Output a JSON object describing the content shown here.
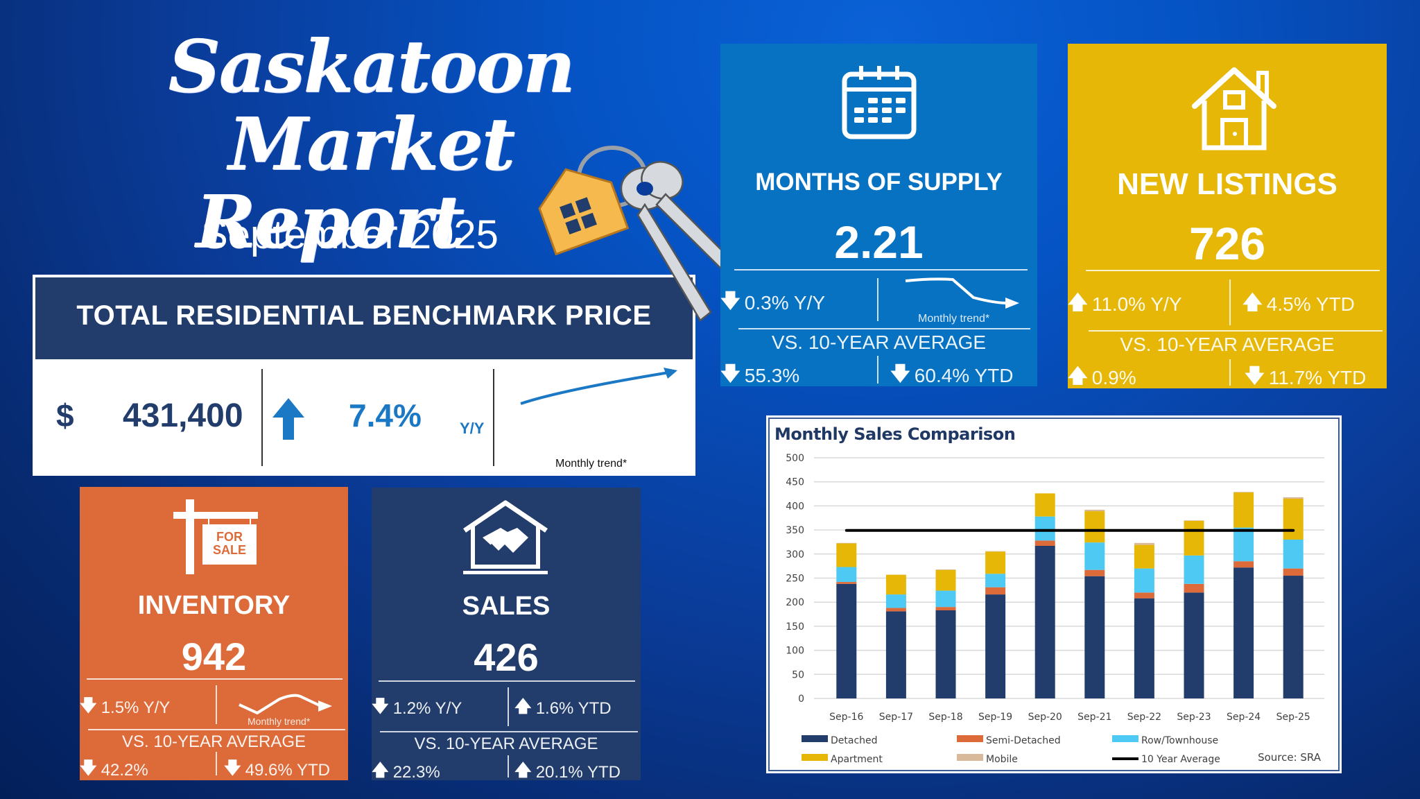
{
  "header": {
    "title_line1": "Saskatoon Market",
    "title_line2": "Report",
    "subtitle": "September 2025"
  },
  "colors": {
    "navy": "#223d6b",
    "blue": "#0872c2",
    "gold": "#e6b707",
    "orange": "#dd6b3a",
    "cyan": "#4ec9f3",
    "accent_blue": "#1b78c4"
  },
  "benchmark": {
    "title": "TOTAL RESIDENTIAL BENCHMARK PRICE",
    "currency": "$",
    "price": "431,400",
    "direction": "up",
    "change": "7.4%",
    "period": "Y/Y",
    "trend_label": "Monthly trend*"
  },
  "cards": {
    "supply": {
      "icon": "calendar-icon",
      "label": "MONTHS OF SUPPLY",
      "value": "2.21",
      "yy": {
        "dir": "down",
        "text": "0.3% Y/Y"
      },
      "trend_label": "Monthly trend*",
      "vs_label": "VS. 10-YEAR AVERAGE",
      "avg": {
        "dir": "down",
        "text": "55.3%"
      },
      "avg_ytd": {
        "dir": "down",
        "text": "60.4% YTD"
      }
    },
    "new_listings": {
      "icon": "house-icon",
      "label": "NEW LISTINGS",
      "value": "726",
      "yy": {
        "dir": "up",
        "text": "11.0% Y/Y"
      },
      "ytd": {
        "dir": "up",
        "text": "4.5% YTD"
      },
      "vs_label": "VS. 10-YEAR AVERAGE",
      "avg": {
        "dir": "up",
        "text": "0.9%"
      },
      "avg_ytd": {
        "dir": "down",
        "text": "11.7% YTD"
      }
    },
    "inventory": {
      "icon": "for-sale-sign-icon",
      "sign_line1": "FOR",
      "sign_line2": "SALE",
      "label": "INVENTORY",
      "value": "942",
      "yy": {
        "dir": "down",
        "text": "1.5% Y/Y"
      },
      "trend_label": "Monthly trend*",
      "vs_label": "VS. 10-YEAR AVERAGE",
      "avg": {
        "dir": "down",
        "text": "42.2%"
      },
      "avg_ytd": {
        "dir": "down",
        "text": "49.6% YTD"
      }
    },
    "sales": {
      "icon": "handshake-house-icon",
      "label": "SALES",
      "value": "426",
      "yy": {
        "dir": "down",
        "text": "1.2% Y/Y"
      },
      "ytd": {
        "dir": "up",
        "text": "1.6% YTD"
      },
      "vs_label": "VS. 10-YEAR AVERAGE",
      "avg": {
        "dir": "up",
        "text": "22.3%"
      },
      "avg_ytd": {
        "dir": "up",
        "text": "20.1% YTD"
      }
    }
  },
  "chart_data": {
    "type": "bar",
    "stacked": true,
    "title": "Monthly Sales Comparison",
    "xlabel": "",
    "ylabel": "",
    "ylim": [
      0,
      500
    ],
    "yticks": [
      0,
      50,
      100,
      150,
      200,
      250,
      300,
      350,
      400,
      450,
      500
    ],
    "grid": true,
    "legend_position": "bottom",
    "source": "Source: SRA",
    "categories": [
      "Sep-16",
      "Sep-17",
      "Sep-18",
      "Sep-19",
      "Sep-20",
      "Sep-21",
      "Sep-22",
      "Sep-23",
      "Sep-24",
      "Sep-25"
    ],
    "series": [
      {
        "name": "Detached",
        "color": "#223d6b",
        "values": [
          238,
          181,
          183,
          216,
          317,
          254,
          208,
          220,
          272,
          255
        ]
      },
      {
        "name": "Semi-Detached",
        "color": "#dd6b3a",
        "values": [
          4,
          7,
          7,
          15,
          11,
          13,
          12,
          18,
          13,
          15
        ]
      },
      {
        "name": "Row/Townhouse",
        "color": "#4ec9f3",
        "values": [
          31,
          28,
          34,
          28,
          50,
          57,
          50,
          59,
          70,
          60
        ]
      },
      {
        "name": "Apartment",
        "color": "#e6b707",
        "values": [
          49,
          41,
          43,
          46,
          48,
          65,
          49,
          72,
          73,
          85
        ]
      },
      {
        "name": "Mobile",
        "color": "#d8b99a",
        "values": [
          1,
          0,
          1,
          1,
          0,
          3,
          4,
          1,
          1,
          3
        ]
      }
    ],
    "reference_line": {
      "name": "10 Year Average",
      "color": "#000000",
      "value": 349
    }
  }
}
